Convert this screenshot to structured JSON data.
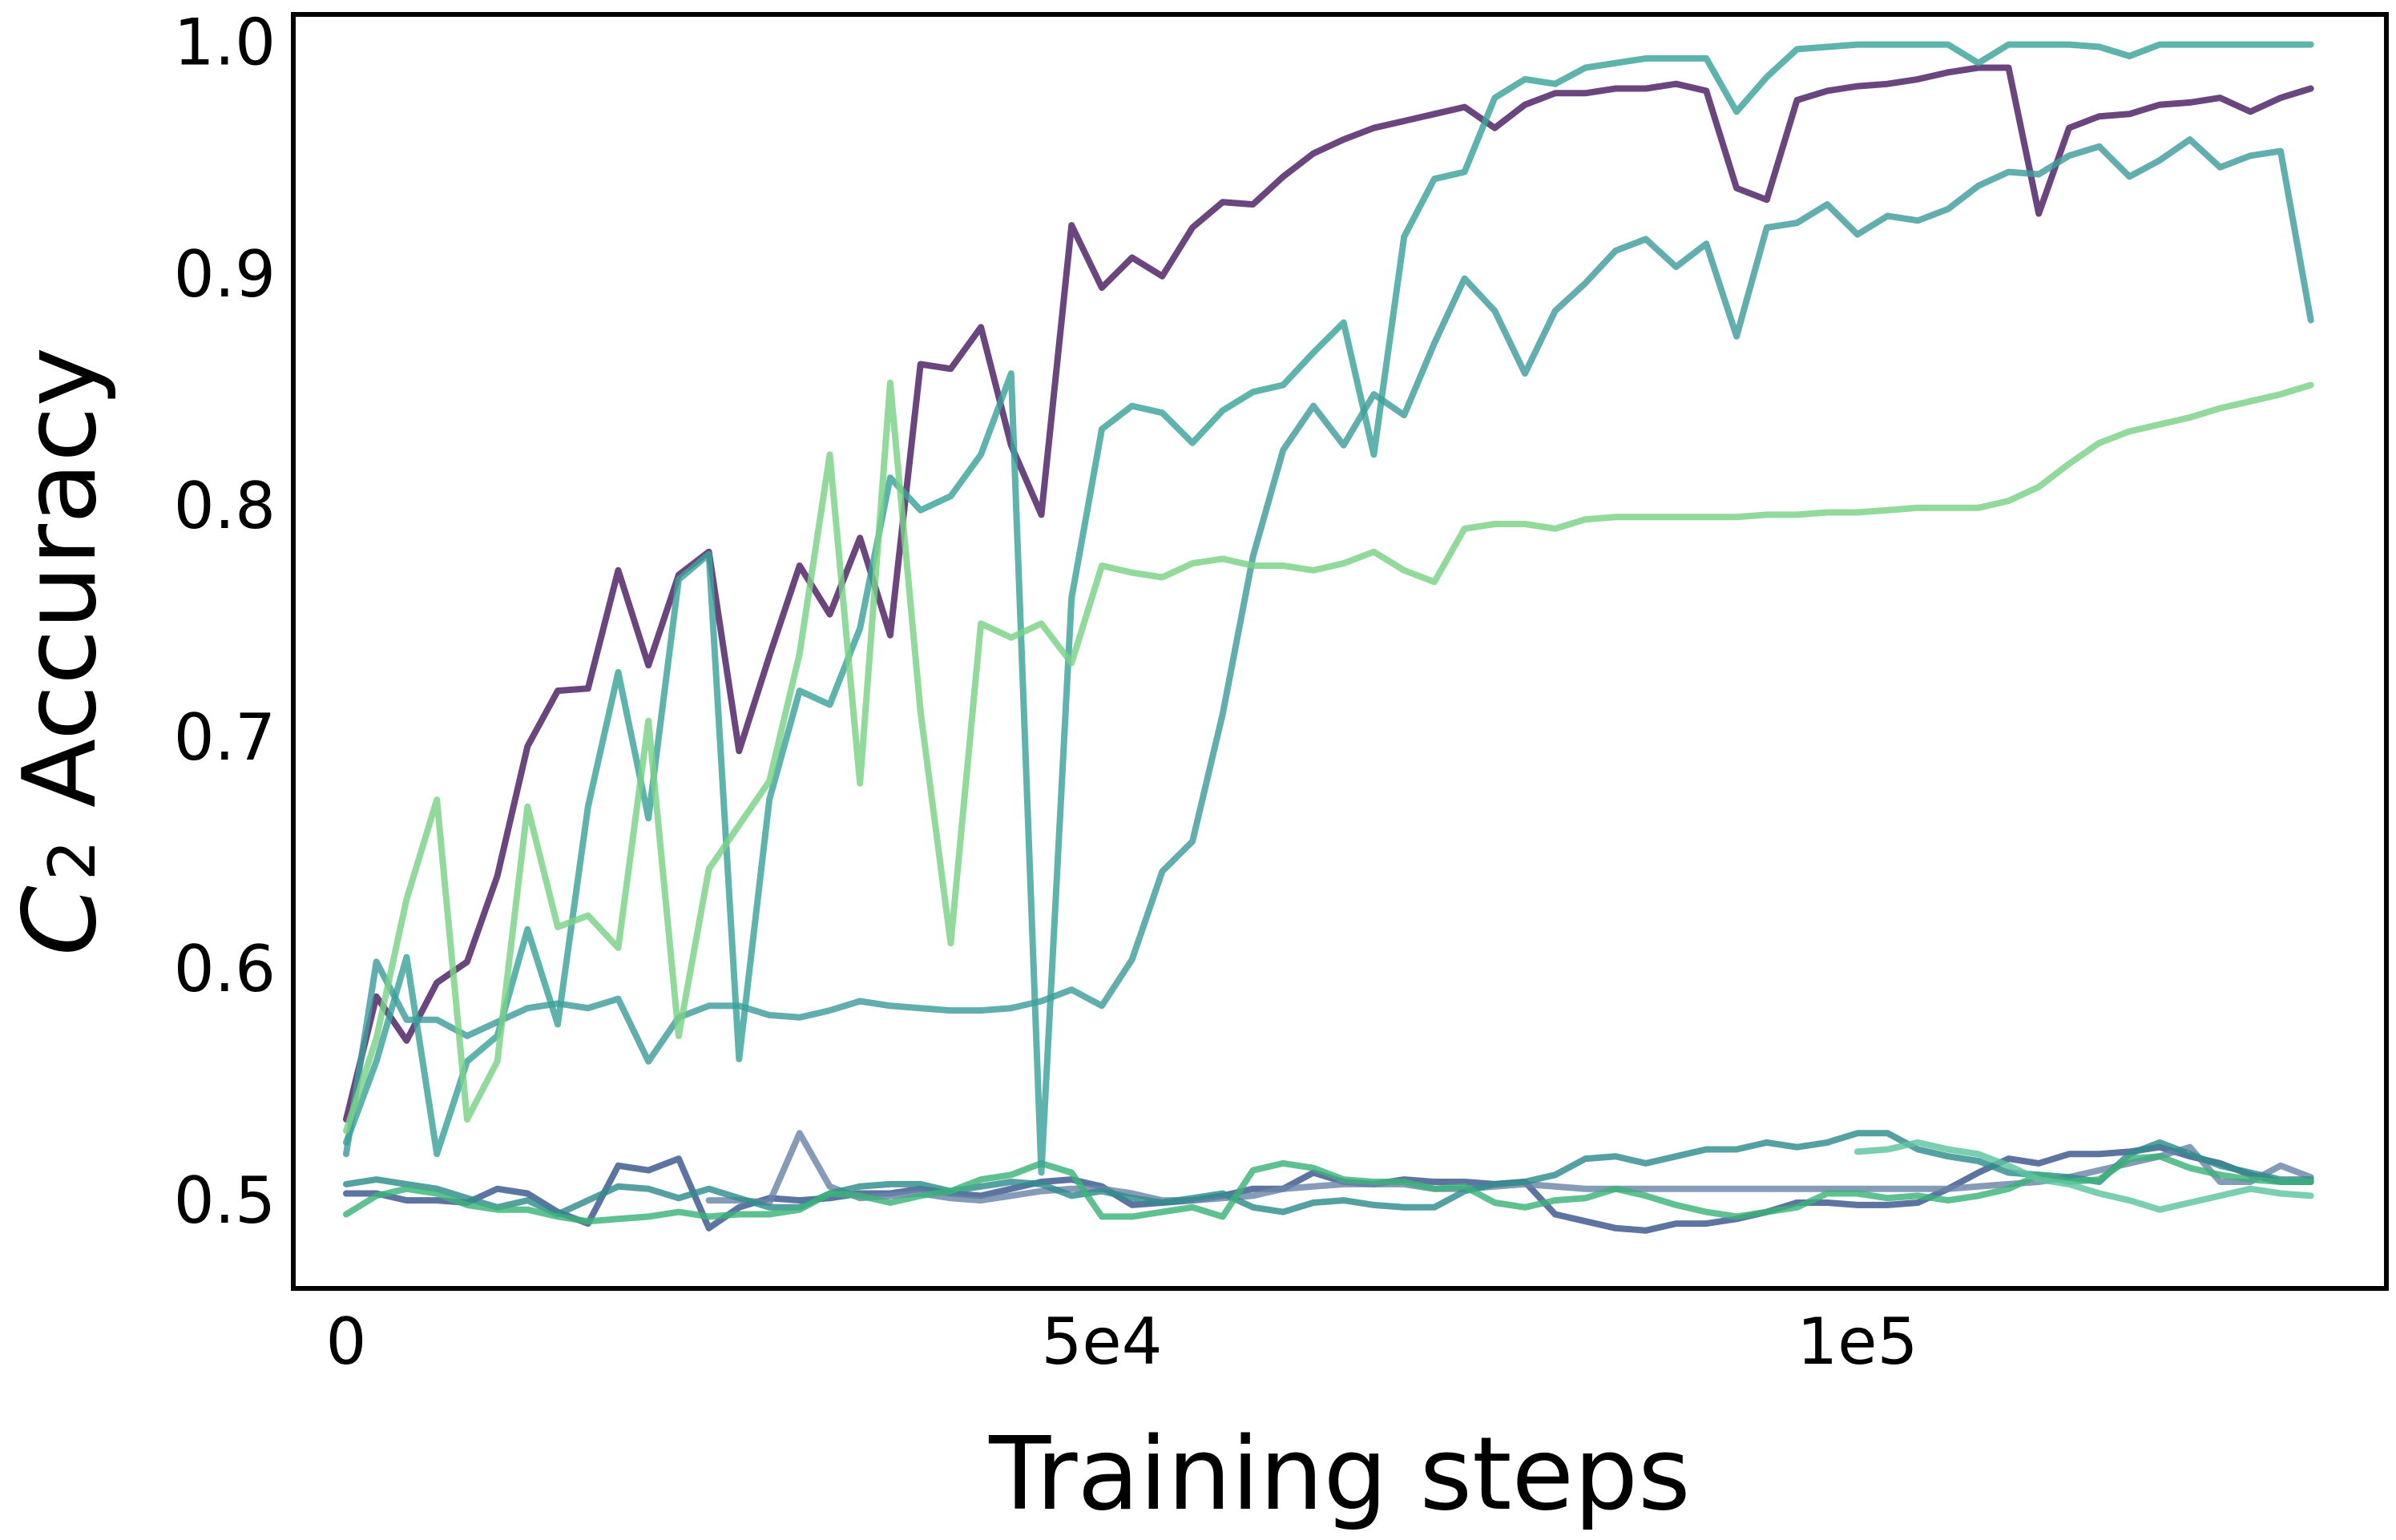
{
  "chart_data": {
    "type": "line",
    "xlabel": "Training steps",
    "ylabel_main": "C",
    "ylabel_sub": "2",
    "ylabel_rest": " Accuracy",
    "xlim": [
      -3500,
      135000
    ],
    "ylim": [
      0.462,
      1.012
    ],
    "xticks": [
      0,
      50000,
      100000
    ],
    "xtick_labels": [
      "0",
      "5e4",
      "1e5"
    ],
    "yticks": [
      0.5,
      0.6,
      0.7,
      0.8,
      0.9,
      1.0
    ],
    "ytick_labels": [
      "0.5",
      "0.6",
      "0.7",
      "0.8",
      "0.9",
      "1.0"
    ],
    "grid": false,
    "series": [
      {
        "color": "#4b1d62",
        "x": [
          0,
          2000,
          4000,
          6000,
          8000,
          10000,
          12000,
          14000,
          16000,
          18000,
          20000,
          22000,
          24000,
          26000,
          28000,
          30000,
          32000,
          34000,
          36000,
          38000,
          40000,
          42000,
          44000,
          46000,
          48000,
          50000,
          52000,
          54000,
          56000,
          58000,
          60000,
          62000,
          64000,
          66000,
          68000,
          70000,
          72000,
          74000,
          76000,
          78000,
          80000,
          82000,
          84000,
          86000,
          88000,
          90000,
          92000,
          94000,
          96000,
          98000,
          100000,
          102000,
          104000,
          106000,
          108000,
          110000,
          112000,
          114000,
          116000,
          118000,
          120000,
          122000,
          124000,
          126000,
          128000,
          130000
        ],
        "y": [
          0.535,
          0.588,
          0.569,
          0.594,
          0.603,
          0.64,
          0.696,
          0.72,
          0.721,
          0.772,
          0.731,
          0.77,
          0.78,
          0.694,
          0.735,
          0.774,
          0.753,
          0.786,
          0.744,
          0.861,
          0.859,
          0.877,
          0.826,
          0.796,
          0.921,
          0.894,
          0.907,
          0.899,
          0.92,
          0.931,
          0.93,
          0.942,
          0.952,
          0.958,
          0.963,
          0.966,
          0.969,
          0.972,
          0.963,
          0.973,
          0.978,
          0.978,
          0.98,
          0.98,
          0.982,
          0.979,
          0.937,
          0.932,
          0.975,
          0.979,
          0.981,
          0.982,
          0.984,
          0.987,
          0.989,
          0.989,
          0.926,
          0.963,
          0.968,
          0.969,
          0.973,
          0.974,
          0.976,
          0.97,
          0.976,
          0.98
        ]
      },
      {
        "color": "#39568c",
        "x": [
          0,
          2000,
          4000,
          6000,
          8000,
          10000,
          12000,
          14000,
          16000,
          18000,
          20000,
          22000,
          24000,
          26000,
          28000,
          30000,
          32000,
          34000,
          36000,
          38000,
          40000,
          42000,
          44000,
          46000,
          48000,
          50000,
          52000,
          54000,
          56000,
          58000,
          60000,
          62000,
          64000,
          66000,
          68000,
          70000,
          72000,
          74000,
          76000,
          78000,
          80000,
          82000,
          84000,
          86000,
          88000,
          90000,
          92000,
          94000,
          96000,
          98000,
          100000,
          102000,
          104000,
          106000,
          108000,
          110000,
          112000,
          114000,
          116000,
          118000,
          120000,
          122000,
          124000,
          126000,
          128000,
          130000
        ],
        "y": [
          0.503,
          0.503,
          0.5,
          0.5,
          0.499,
          0.505,
          0.503,
          0.495,
          0.49,
          0.515,
          0.513,
          0.518,
          0.488,
          0.497,
          0.501,
          0.5,
          0.501,
          0.503,
          0.503,
          0.505,
          0.503,
          0.502,
          0.505,
          0.508,
          0.509,
          0.506,
          0.498,
          0.499,
          0.5,
          0.502,
          0.505,
          0.505,
          0.512,
          0.508,
          0.507,
          0.509,
          0.508,
          0.508,
          0.507,
          0.508,
          0.494,
          0.491,
          0.488,
          0.487,
          0.49,
          0.49,
          0.492,
          0.495,
          0.499,
          0.499,
          0.498,
          0.498,
          0.499,
          0.505,
          0.512,
          0.518,
          0.516,
          0.52,
          0.52,
          0.521,
          0.523,
          0.519,
          0.516,
          0.511,
          0.508,
          0.508
        ]
      },
      {
        "color": "#6a85a8",
        "x": [
          24000,
          26000,
          28000,
          30000,
          32000,
          34000,
          36000,
          38000,
          40000,
          42000,
          44000,
          46000,
          48000,
          50000,
          52000,
          54000,
          56000,
          58000,
          60000,
          62000,
          64000,
          66000,
          68000,
          70000,
          72000,
          74000,
          76000,
          78000,
          80000,
          82000,
          84000,
          86000,
          88000,
          90000,
          92000,
          94000,
          96000,
          98000,
          100000,
          102000,
          104000,
          106000,
          108000,
          110000,
          112000,
          114000,
          116000,
          118000,
          120000,
          122000,
          124000,
          126000,
          128000,
          130000
        ],
        "y": [
          0.5,
          0.5,
          0.499,
          0.529,
          0.506,
          0.501,
          0.502,
          0.503,
          0.501,
          0.5,
          0.502,
          0.504,
          0.505,
          0.505,
          0.503,
          0.5,
          0.5,
          0.501,
          0.502,
          0.505,
          0.506,
          0.507,
          0.507,
          0.507,
          0.505,
          0.505,
          0.506,
          0.507,
          0.506,
          0.505,
          0.505,
          0.505,
          0.505,
          0.505,
          0.505,
          0.505,
          0.505,
          0.505,
          0.505,
          0.505,
          0.505,
          0.505,
          0.506,
          0.507,
          0.508,
          0.51,
          0.513,
          0.516,
          0.519,
          0.523,
          0.508,
          0.508,
          0.515,
          0.51
        ]
      },
      {
        "color": "#2f8c8c",
        "x": [
          0,
          2000,
          4000,
          6000,
          8000,
          10000,
          12000,
          14000,
          16000,
          18000,
          20000,
          22000,
          24000,
          26000,
          28000,
          30000,
          32000,
          34000,
          36000,
          38000,
          40000,
          42000,
          44000,
          46000,
          48000,
          50000,
          52000,
          54000,
          56000,
          58000,
          60000,
          62000,
          64000,
          66000,
          68000,
          70000,
          72000,
          74000,
          76000,
          78000,
          80000,
          82000,
          84000,
          86000,
          88000,
          90000,
          92000,
          94000,
          96000,
          98000,
          100000,
          102000,
          104000,
          106000,
          108000,
          110000,
          112000,
          114000,
          116000,
          118000,
          120000,
          122000,
          124000,
          126000,
          128000,
          130000
        ],
        "y": [
          0.507,
          0.509,
          0.507,
          0.505,
          0.501,
          0.497,
          0.5,
          0.494,
          0.5,
          0.506,
          0.505,
          0.501,
          0.505,
          0.501,
          0.497,
          0.497,
          0.503,
          0.506,
          0.507,
          0.507,
          0.504,
          0.506,
          0.508,
          0.507,
          0.502,
          0.504,
          0.501,
          0.499,
          0.501,
          0.503,
          0.497,
          0.495,
          0.499,
          0.5,
          0.498,
          0.497,
          0.497,
          0.504,
          0.507,
          0.508,
          0.511,
          0.518,
          0.519,
          0.516,
          0.519,
          0.522,
          0.522,
          0.525,
          0.523,
          0.525,
          0.529,
          0.529,
          0.522,
          0.519,
          0.517,
          0.512,
          0.511,
          0.51,
          0.508,
          0.52,
          0.525,
          0.52,
          0.515,
          0.512,
          0.509,
          0.509
        ]
      },
      {
        "color": "#3cb27a",
        "x": [
          0,
          2000,
          4000,
          6000,
          8000,
          10000,
          12000,
          14000,
          16000,
          18000,
          20000,
          22000,
          24000,
          26000,
          28000,
          30000,
          32000,
          34000,
          36000,
          38000,
          40000,
          42000,
          44000,
          46000,
          48000,
          50000,
          52000,
          54000,
          56000,
          58000,
          60000,
          62000,
          64000,
          66000,
          68000,
          70000,
          72000,
          74000,
          76000,
          78000,
          80000,
          82000,
          84000,
          86000,
          88000,
          90000,
          92000,
          94000,
          96000,
          98000,
          100000,
          102000,
          104000,
          106000,
          108000,
          110000,
          112000,
          114000,
          116000,
          118000,
          120000,
          122000,
          124000,
          126000,
          128000,
          130000
        ],
        "y": [
          0.494,
          0.502,
          0.505,
          0.503,
          0.498,
          0.496,
          0.496,
          0.493,
          0.491,
          0.492,
          0.493,
          0.495,
          0.493,
          0.494,
          0.494,
          0.496,
          0.503,
          0.502,
          0.499,
          0.502,
          0.504,
          0.509,
          0.511,
          0.516,
          0.512,
          0.493,
          0.493,
          0.495,
          0.497,
          0.493,
          0.513,
          0.516,
          0.514,
          0.509,
          0.508,
          0.508,
          0.505,
          0.506,
          0.499,
          0.497,
          0.5,
          0.501,
          0.505,
          0.502,
          0.498,
          0.495,
          0.493,
          0.495,
          0.497,
          0.503,
          0.503,
          0.501,
          0.502,
          0.5,
          0.502,
          0.505,
          0.511,
          0.508,
          0.509,
          0.518,
          0.519,
          0.514,
          0.511,
          0.509,
          0.508,
          0.508
        ]
      },
      {
        "color": "#5ec4a0",
        "x": [
          100000,
          102000,
          104000,
          106000,
          108000,
          110000,
          112000,
          114000,
          116000,
          118000,
          120000,
          122000,
          124000,
          126000,
          128000,
          130000
        ],
        "y": [
          0.521,
          0.522,
          0.525,
          0.522,
          0.52,
          0.515,
          0.509,
          0.507,
          0.503,
          0.5,
          0.496,
          0.499,
          0.502,
          0.505,
          0.503,
          0.502
        ]
      },
      {
        "color": "#3f9c9c",
        "x": [
          0,
          2000,
          4000,
          6000,
          8000,
          10000,
          12000,
          14000,
          16000,
          18000,
          20000,
          22000,
          24000,
          26000,
          28000,
          30000,
          32000,
          34000,
          36000,
          38000,
          40000,
          42000,
          44000,
          46000,
          48000,
          50000,
          52000,
          54000,
          56000,
          58000,
          60000,
          62000,
          64000,
          66000,
          68000,
          70000,
          72000,
          74000,
          76000,
          78000,
          80000,
          82000,
          84000,
          86000,
          88000,
          90000,
          92000,
          94000,
          96000,
          98000,
          100000,
          102000,
          104000,
          106000,
          108000,
          110000,
          112000,
          114000,
          116000,
          118000,
          120000,
          122000,
          124000,
          126000,
          128000,
          130000
        ],
        "y": [
          0.52,
          0.603,
          0.578,
          0.578,
          0.571,
          0.577,
          0.583,
          0.585,
          0.583,
          0.587,
          0.56,
          0.579,
          0.584,
          0.584,
          0.58,
          0.579,
          0.582,
          0.586,
          0.584,
          0.583,
          0.582,
          0.582,
          0.583,
          0.586,
          0.591,
          0.584,
          0.604,
          0.642,
          0.655,
          0.71,
          0.778,
          0.824,
          0.843,
          0.826,
          0.848,
          0.839,
          0.87,
          0.898,
          0.884,
          0.857,
          0.884,
          0.896,
          0.91,
          0.915,
          0.903,
          0.913,
          0.873,
          0.92,
          0.922,
          0.93,
          0.917,
          0.925,
          0.923,
          0.928,
          0.938,
          0.944,
          0.943,
          0.951,
          0.955,
          0.942,
          0.949,
          0.958,
          0.946,
          0.951,
          0.953,
          0.88
        ]
      },
      {
        "color": "#3aa39a",
        "x": [
          0,
          2000,
          4000,
          6000,
          8000,
          10000,
          12000,
          14000,
          16000,
          18000,
          20000,
          22000,
          24000,
          26000,
          28000,
          30000,
          32000,
          34000,
          36000,
          38000,
          40000,
          42000,
          44000,
          46000,
          48000,
          50000,
          52000,
          54000,
          56000,
          58000,
          60000,
          62000,
          64000,
          66000,
          68000,
          70000,
          72000,
          74000,
          76000,
          78000,
          80000,
          82000,
          84000,
          86000,
          88000,
          90000,
          92000,
          94000,
          96000,
          98000,
          100000,
          102000,
          104000,
          106000,
          108000,
          110000,
          112000,
          114000,
          116000,
          118000,
          120000,
          122000,
          124000,
          126000,
          128000,
          130000
        ],
        "y": [
          0.525,
          0.56,
          0.605,
          0.52,
          0.56,
          0.571,
          0.617,
          0.576,
          0.67,
          0.728,
          0.665,
          0.768,
          0.779,
          0.561,
          0.673,
          0.72,
          0.714,
          0.747,
          0.812,
          0.798,
          0.804,
          0.822,
          0.857,
          0.512,
          0.76,
          0.833,
          0.843,
          0.84,
          0.827,
          0.841,
          0.849,
          0.852,
          0.866,
          0.879,
          0.822,
          0.916,
          0.941,
          0.944,
          0.976,
          0.984,
          0.982,
          0.989,
          0.991,
          0.993,
          0.993,
          0.993,
          0.97,
          0.985,
          0.997,
          0.998,
          0.999,
          0.999,
          0.999,
          0.999,
          0.991,
          0.999,
          0.999,
          0.999,
          0.998,
          0.994,
          0.999,
          0.999,
          0.999,
          0.999,
          0.999,
          0.999
        ]
      },
      {
        "color": "#7ad286",
        "x": [
          0,
          2000,
          4000,
          6000,
          8000,
          10000,
          12000,
          14000,
          16000,
          18000,
          20000,
          22000,
          24000,
          26000,
          28000,
          30000,
          32000,
          34000,
          36000,
          38000,
          40000,
          42000,
          44000,
          46000,
          48000,
          50000,
          52000,
          54000,
          56000,
          58000,
          60000,
          62000,
          64000,
          66000,
          68000,
          70000,
          72000,
          74000,
          76000,
          78000,
          80000,
          82000,
          84000,
          86000,
          88000,
          90000,
          92000,
          94000,
          96000,
          98000,
          100000,
          102000,
          104000,
          106000,
          108000,
          110000,
          112000,
          114000,
          116000,
          118000,
          120000,
          122000,
          124000,
          126000,
          128000,
          130000
        ],
        "y": [
          0.53,
          0.57,
          0.63,
          0.673,
          0.535,
          0.56,
          0.67,
          0.618,
          0.623,
          0.609,
          0.707,
          0.571,
          0.643,
          0.662,
          0.681,
          0.736,
          0.822,
          0.68,
          0.853,
          0.711,
          0.611,
          0.749,
          0.743,
          0.749,
          0.732,
          0.774,
          0.771,
          0.769,
          0.775,
          0.777,
          0.774,
          0.774,
          0.772,
          0.775,
          0.78,
          0.772,
          0.767,
          0.79,
          0.792,
          0.792,
          0.79,
          0.794,
          0.795,
          0.795,
          0.795,
          0.795,
          0.795,
          0.796,
          0.796,
          0.797,
          0.797,
          0.798,
          0.799,
          0.799,
          0.799,
          0.802,
          0.808,
          0.818,
          0.827,
          0.832,
          0.835,
          0.838,
          0.842,
          0.845,
          0.848,
          0.852
        ]
      }
    ]
  }
}
